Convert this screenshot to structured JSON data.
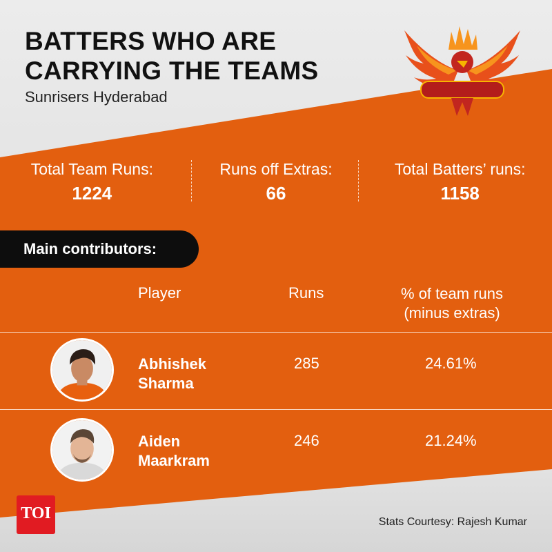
{
  "header": {
    "title_line1": "BATTERS WHO ARE",
    "title_line2": "CARRYING THE TEAMS",
    "subtitle": "Sunrisers Hyderabad",
    "logo_icon": "sunrisers-hyderabad-logo"
  },
  "stats": [
    {
      "label": "Total Team Runs:",
      "value": "1224"
    },
    {
      "label": "Runs off Extras:",
      "value": "66"
    },
    {
      "label": "Total Batters’ runs:",
      "value": "1158"
    }
  ],
  "section": {
    "label": "Main contributors:"
  },
  "table": {
    "headers": {
      "player": "Player",
      "runs": "Runs",
      "pct_line1": "% of team runs",
      "pct_line2": "(minus extras)"
    },
    "rows": [
      {
        "first": "Abhishek",
        "last": "Sharma",
        "runs": "285",
        "pct": "24.61%",
        "avatar_icon": "player-photo-abhishek-sharma"
      },
      {
        "first": "Aiden",
        "last": "Maarkram",
        "runs": "246",
        "pct": "21.24%",
        "avatar_icon": "player-photo-aiden-markram"
      }
    ]
  },
  "footer": {
    "brand": "TOI",
    "credit": "Stats Courtesy: Rajesh Kumar"
  },
  "colors": {
    "accent_orange": "#e35f0f",
    "pill_black": "#0d0d0d",
    "toi_red": "#e11b22"
  }
}
